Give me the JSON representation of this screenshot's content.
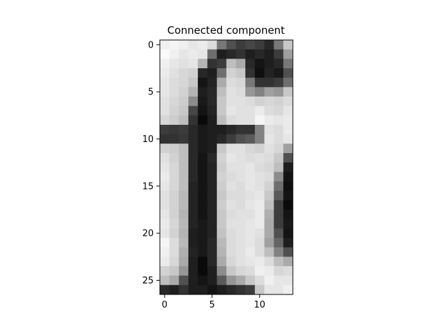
{
  "chart_data": {
    "type": "heatmap",
    "title": "Connected component",
    "colormap": "gray",
    "xlabel": "",
    "ylabel": "",
    "xlim": [
      -0.5,
      13.5
    ],
    "ylim": [
      26.5,
      -0.5
    ],
    "xticks": [
      0,
      5,
      10
    ],
    "yticks": [
      0,
      5,
      10,
      15,
      20,
      25
    ],
    "xtick_labels": [
      "0",
      "5",
      "10"
    ],
    "ytick_labels": [
      "0",
      "5",
      "10",
      "15",
      "20",
      "25"
    ],
    "value_range": [
      0,
      255
    ],
    "rows": [
      [
        240,
        245,
        240,
        230,
        235,
        220,
        120,
        80,
        60,
        70,
        60,
        40,
        120,
        200
      ],
      [
        250,
        240,
        230,
        235,
        230,
        110,
        30,
        40,
        50,
        30,
        40,
        30,
        60,
        160
      ],
      [
        240,
        230,
        225,
        230,
        180,
        50,
        60,
        190,
        170,
        40,
        20,
        30,
        40,
        120
      ],
      [
        235,
        225,
        215,
        210,
        40,
        30,
        110,
        210,
        200,
        50,
        15,
        35,
        25,
        80
      ],
      [
        230,
        220,
        215,
        200,
        20,
        35,
        170,
        220,
        215,
        120,
        50,
        50,
        60,
        110
      ],
      [
        230,
        220,
        210,
        180,
        30,
        40,
        190,
        225,
        220,
        150,
        130,
        160,
        150,
        200
      ],
      [
        225,
        215,
        205,
        140,
        25,
        40,
        200,
        225,
        225,
        220,
        210,
        215,
        210,
        220
      ],
      [
        225,
        210,
        200,
        70,
        20,
        35,
        200,
        230,
        225,
        225,
        235,
        220,
        215,
        230
      ],
      [
        215,
        205,
        190,
        50,
        10,
        30,
        190,
        220,
        225,
        225,
        245,
        235,
        230,
        235
      ],
      [
        60,
        55,
        60,
        40,
        25,
        30,
        30,
        40,
        50,
        50,
        130,
        225,
        220,
        235
      ],
      [
        50,
        50,
        55,
        40,
        25,
        30,
        40,
        60,
        80,
        90,
        130,
        230,
        220,
        230
      ],
      [
        210,
        205,
        190,
        40,
        25,
        30,
        200,
        225,
        225,
        215,
        210,
        225,
        215,
        160
      ],
      [
        225,
        210,
        190,
        40,
        20,
        40,
        210,
        230,
        225,
        220,
        225,
        220,
        200,
        80
      ],
      [
        230,
        215,
        190,
        40,
        20,
        35,
        205,
        225,
        225,
        230,
        220,
        215,
        190,
        30
      ],
      [
        235,
        215,
        190,
        40,
        20,
        35,
        210,
        220,
        225,
        230,
        225,
        220,
        140,
        20
      ],
      [
        230,
        215,
        190,
        35,
        20,
        35,
        205,
        225,
        220,
        230,
        225,
        210,
        110,
        15
      ],
      [
        225,
        210,
        185,
        35,
        20,
        35,
        200,
        220,
        220,
        225,
        230,
        200,
        90,
        20
      ],
      [
        225,
        210,
        185,
        35,
        20,
        35,
        205,
        225,
        220,
        230,
        235,
        190,
        60,
        10
      ],
      [
        230,
        210,
        180,
        35,
        20,
        35,
        200,
        220,
        225,
        225,
        235,
        175,
        60,
        20
      ],
      [
        235,
        215,
        185,
        35,
        25,
        35,
        200,
        225,
        225,
        230,
        235,
        170,
        60,
        25
      ],
      [
        230,
        210,
        180,
        30,
        25,
        35,
        195,
        220,
        225,
        230,
        225,
        170,
        80,
        20
      ],
      [
        245,
        220,
        185,
        30,
        25,
        40,
        185,
        220,
        225,
        230,
        220,
        160,
        100,
        30
      ],
      [
        240,
        220,
        175,
        35,
        25,
        40,
        180,
        220,
        225,
        235,
        220,
        190,
        130,
        80
      ],
      [
        235,
        215,
        170,
        30,
        10,
        40,
        170,
        215,
        225,
        230,
        235,
        220,
        190,
        170
      ],
      [
        210,
        200,
        150,
        30,
        10,
        30,
        140,
        200,
        215,
        220,
        240,
        235,
        215,
        220
      ],
      [
        190,
        170,
        80,
        30,
        20,
        30,
        90,
        150,
        170,
        200,
        220,
        240,
        230,
        230
      ],
      [
        40,
        30,
        50,
        30,
        30,
        20,
        30,
        40,
        50,
        60,
        200,
        230,
        230,
        240
      ]
    ]
  }
}
